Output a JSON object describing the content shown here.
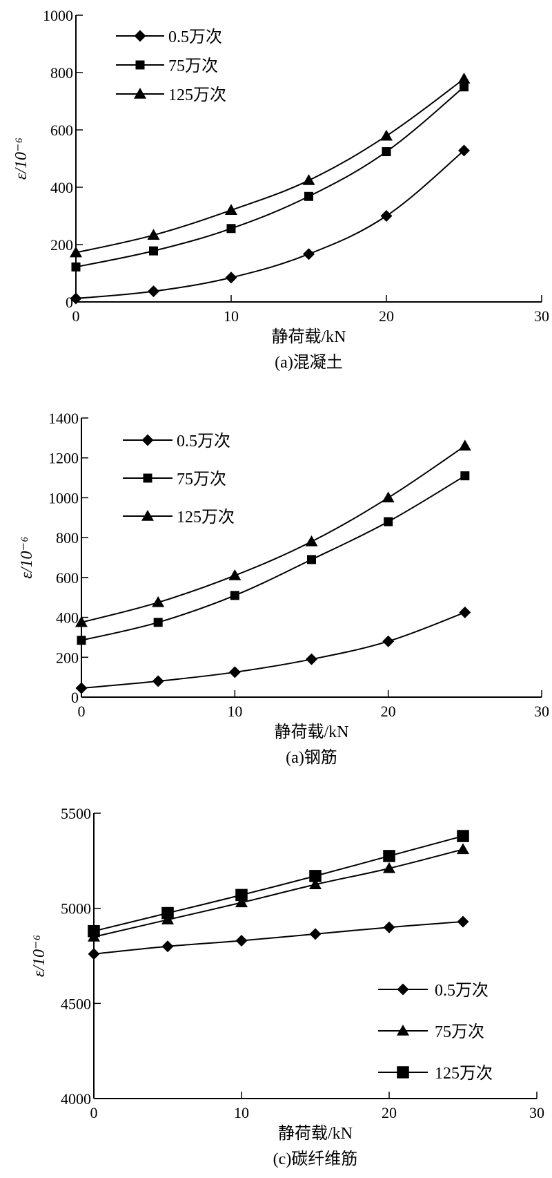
{
  "chart_data": [
    {
      "type": "line",
      "caption": "(a)混凝土",
      "xlabel": "静荷载/kN",
      "ylabel": "ε/10⁻⁶",
      "xlim": [
        0,
        30
      ],
      "ylim": [
        0,
        1000
      ],
      "x_ticks": [
        0,
        10,
        20,
        30
      ],
      "y_ticks": [
        0,
        200,
        400,
        600,
        800,
        1000
      ],
      "x": [
        0,
        5,
        10,
        15,
        20,
        25
      ],
      "legend_position": "top-left",
      "series": [
        {
          "name": "0.5万次",
          "marker": "diamond",
          "values": [
            12,
            37,
            85,
            167,
            300,
            528
          ]
        },
        {
          "name": "75万次",
          "marker": "square",
          "values": [
            122,
            178,
            256,
            368,
            524,
            750
          ]
        },
        {
          "name": "125万次",
          "marker": "triangle",
          "values": [
            172,
            233,
            320,
            424,
            579,
            778
          ]
        }
      ]
    },
    {
      "type": "line",
      "caption": "(a)钢筋",
      "xlabel": "静荷载/kN",
      "ylabel": "ε/10⁻⁶",
      "xlim": [
        0,
        30
      ],
      "ylim": [
        0,
        1400
      ],
      "x_ticks": [
        0,
        10,
        20,
        30
      ],
      "y_ticks": [
        0,
        200,
        400,
        600,
        800,
        1000,
        1200,
        1400
      ],
      "x": [
        0,
        5,
        10,
        15,
        20,
        25
      ],
      "legend_position": "top-left",
      "series": [
        {
          "name": "0.5万次",
          "marker": "diamond",
          "values": [
            45,
            80,
            125,
            190,
            280,
            425
          ]
        },
        {
          "name": "75万次",
          "marker": "square",
          "values": [
            285,
            375,
            510,
            690,
            880,
            1110
          ]
        },
        {
          "name": "125万次",
          "marker": "triangle",
          "values": [
            375,
            475,
            610,
            780,
            1000,
            1260
          ]
        }
      ]
    },
    {
      "type": "line",
      "caption": "(c)碳纤维筋",
      "xlabel": "静荷载/kN",
      "ylabel": "ε/10⁻⁶",
      "xlim": [
        0,
        30
      ],
      "ylim": [
        4000,
        5500
      ],
      "x_ticks": [
        0,
        10,
        20,
        30
      ],
      "y_ticks": [
        4000,
        4500,
        5000,
        5500
      ],
      "x": [
        0,
        5,
        10,
        15,
        20,
        25
      ],
      "legend_position": "bottom-right",
      "series": [
        {
          "name": "0.5万次",
          "marker": "diamond",
          "values": [
            4760,
            4800,
            4830,
            4865,
            4900,
            4930
          ]
        },
        {
          "name": "75万次",
          "marker": "triangle",
          "values": [
            4850,
            4940,
            5030,
            5125,
            5210,
            5310
          ]
        },
        {
          "name": "125万次",
          "marker": "square",
          "values": [
            4880,
            4975,
            5070,
            5170,
            5275,
            5380
          ]
        }
      ]
    }
  ]
}
